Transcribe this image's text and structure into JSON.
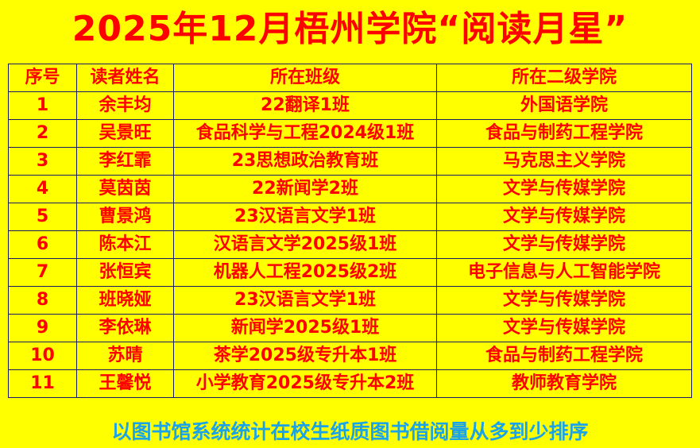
{
  "title": "2025年12月梧州学院“阅读月星”",
  "table": {
    "headers": [
      "序号",
      "读者姓名",
      "所在班级",
      "所在二级学院"
    ],
    "rows": [
      [
        "1",
        "余丰均",
        "22翻译1班",
        "外国语学院"
      ],
      [
        "2",
        "吴景旺",
        "食品科学与工程2024级1班",
        "食品与制药工程学院"
      ],
      [
        "3",
        "李红霏",
        "23思想政治教育班",
        "马克思主义学院"
      ],
      [
        "4",
        "莫茵茵",
        "22新闻学2班",
        "文学与传媒学院"
      ],
      [
        "5",
        "曹景鸿",
        "23汉语言文学1班",
        "文学与传媒学院"
      ],
      [
        "6",
        "陈本江",
        "汉语言文学2025级1班",
        "文学与传媒学院"
      ],
      [
        "7",
        "张恒宾",
        "机器人工程2025级2班",
        "电子信息与人工智能学院"
      ],
      [
        "8",
        "班晓娅",
        "23汉语言文学1班",
        "文学与传媒学院"
      ],
      [
        "9",
        "李依琳",
        "新闻学2025级1班",
        "文学与传媒学院"
      ],
      [
        "10",
        "苏晴",
        "茶学2025级专升本1班",
        "食品与制药工程学院"
      ],
      [
        "11",
        "王馨悦",
        "小学教育2025级专升本2班",
        "教师教育学院"
      ]
    ]
  },
  "footer": "以图书馆系统统计在校生纸质图书借阅量从多到少排序",
  "colors": {
    "background": "#ffff00",
    "text": "#ff0000",
    "footer": "#1aa3e8",
    "border": "#1a1a66"
  }
}
